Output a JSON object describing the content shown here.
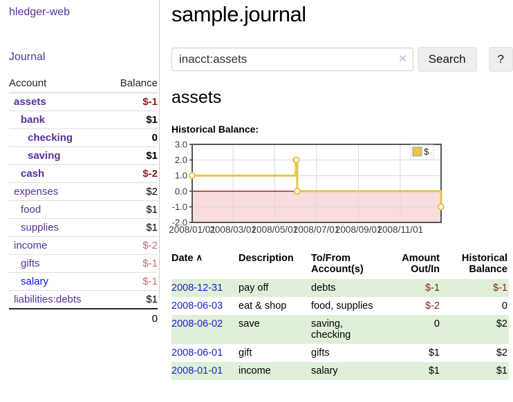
{
  "sidebar": {
    "brand": "hledger-web",
    "nav": {
      "journal": "Journal"
    },
    "accounts": {
      "headers": {
        "account": "Account",
        "balance": "Balance"
      },
      "rows": [
        {
          "name": "assets",
          "indent": 0,
          "strong": true,
          "balance": "$-1",
          "negative": true
        },
        {
          "name": "bank",
          "indent": 1,
          "strong": true,
          "balance": "$1"
        },
        {
          "name": "checking",
          "indent": 2,
          "strong": true,
          "balance": "0"
        },
        {
          "name": "saving",
          "indent": 2,
          "strong": true,
          "balance": "$1"
        },
        {
          "name": "cash",
          "indent": 1,
          "strong": true,
          "balance": "$-2",
          "negative": true
        },
        {
          "name": "expenses",
          "indent": 0,
          "strong": false,
          "balance": "$2"
        },
        {
          "name": "food",
          "indent": 1,
          "strong": false,
          "balance": "$1"
        },
        {
          "name": "supplies",
          "indent": 1,
          "strong": false,
          "balance": "$1"
        },
        {
          "name": "income",
          "indent": 0,
          "strong": false,
          "balance": "$-2",
          "negative": true
        },
        {
          "name": "gifts",
          "indent": 1,
          "strong": false,
          "balance": "$-1",
          "negative": true
        },
        {
          "name": "salary",
          "indent": 1,
          "strong": false,
          "balance": "$-1",
          "negative": true,
          "unvisited": true
        },
        {
          "name": "liabilities:debts",
          "indent": 0,
          "strong": false,
          "balance": "$1"
        }
      ],
      "total": "0"
    }
  },
  "header": {
    "title": "sample.journal"
  },
  "search": {
    "query": "inacct:assets",
    "clear_icon": "✕",
    "button": "Search",
    "help_button": "?"
  },
  "account_page": {
    "heading": "assets",
    "chart_label": "Historical Balance:"
  },
  "chart_data": {
    "type": "line",
    "title": "Historical Balance",
    "legend": [
      {
        "label": "$",
        "color": "#e8c24a"
      }
    ],
    "xlim_days": [
      0,
      365
    ],
    "ylim": [
      -2,
      3
    ],
    "grid": true,
    "legend_position": "top-right",
    "yticks": [
      {
        "label": "3.0",
        "value": 3
      },
      {
        "label": "2.0",
        "value": 2
      },
      {
        "label": "1.0",
        "value": 1
      },
      {
        "label": "0.0",
        "value": 0
      },
      {
        "label": "-1.0",
        "value": -1
      },
      {
        "label": "-2.0",
        "value": -2
      }
    ],
    "xticks": [
      {
        "label": "2008/01/01",
        "day": 0
      },
      {
        "label": "2008/03/01",
        "day": 60
      },
      {
        "label": "2008/05/01",
        "day": 121
      },
      {
        "label": "2008/07/01",
        "day": 182
      },
      {
        "label": "2008/09/01",
        "day": 244
      },
      {
        "label": "2008/11/01",
        "day": 305
      }
    ],
    "series": [
      {
        "name": "$",
        "step": true,
        "color": "#e8c24a",
        "marker_fill": "#ffffff",
        "points": [
          {
            "date": "2008-01-01",
            "day": 0,
            "value": 1
          },
          {
            "date": "2008-06-01",
            "day": 152,
            "value": 2
          },
          {
            "date": "2008-06-02",
            "day": 153,
            "value": 2
          },
          {
            "date": "2008-06-03",
            "day": 154,
            "value": 0
          },
          {
            "date": "2008-12-31",
            "day": 365,
            "value": -1
          }
        ]
      }
    ],
    "colors": {
      "negative_region": "#fadcdc",
      "zero_line": "#8c1717",
      "grid": "#d9d9d9",
      "border": "#545454",
      "tick_label": "#3a3a3a"
    }
  },
  "register": {
    "columns": {
      "date": "Date",
      "sort_icon": "∧",
      "description": "Description",
      "accounts": "To/From Account(s)",
      "amount": "Amount Out/In",
      "balance": "Historical Balance"
    },
    "rows": [
      {
        "date": "2008-12-31",
        "description": "pay off",
        "accounts": "debts",
        "amount": "$-1",
        "balance": "$-1"
      },
      {
        "date": "2008-06-03",
        "description": "eat & shop",
        "accounts": "food, supplies",
        "amount": "$-2",
        "balance": "0"
      },
      {
        "date": "2008-06-02",
        "description": "save",
        "accounts": "saving, checking",
        "amount": "0",
        "balance": "$2"
      },
      {
        "date": "2008-06-01",
        "description": "gift",
        "accounts": "gifts",
        "amount": "$1",
        "balance": "$2"
      },
      {
        "date": "2008-01-01",
        "description": "income",
        "accounts": "salary",
        "amount": "$1",
        "balance": "$1"
      }
    ]
  },
  "colors": {
    "visited_link": "#56309a",
    "link": "#1d1dcb",
    "negative": "#8f1d1d",
    "negative_muted": "#bf6c6c",
    "row_stripe": "#dff0d8",
    "accent_gold": "#e8c24a"
  }
}
